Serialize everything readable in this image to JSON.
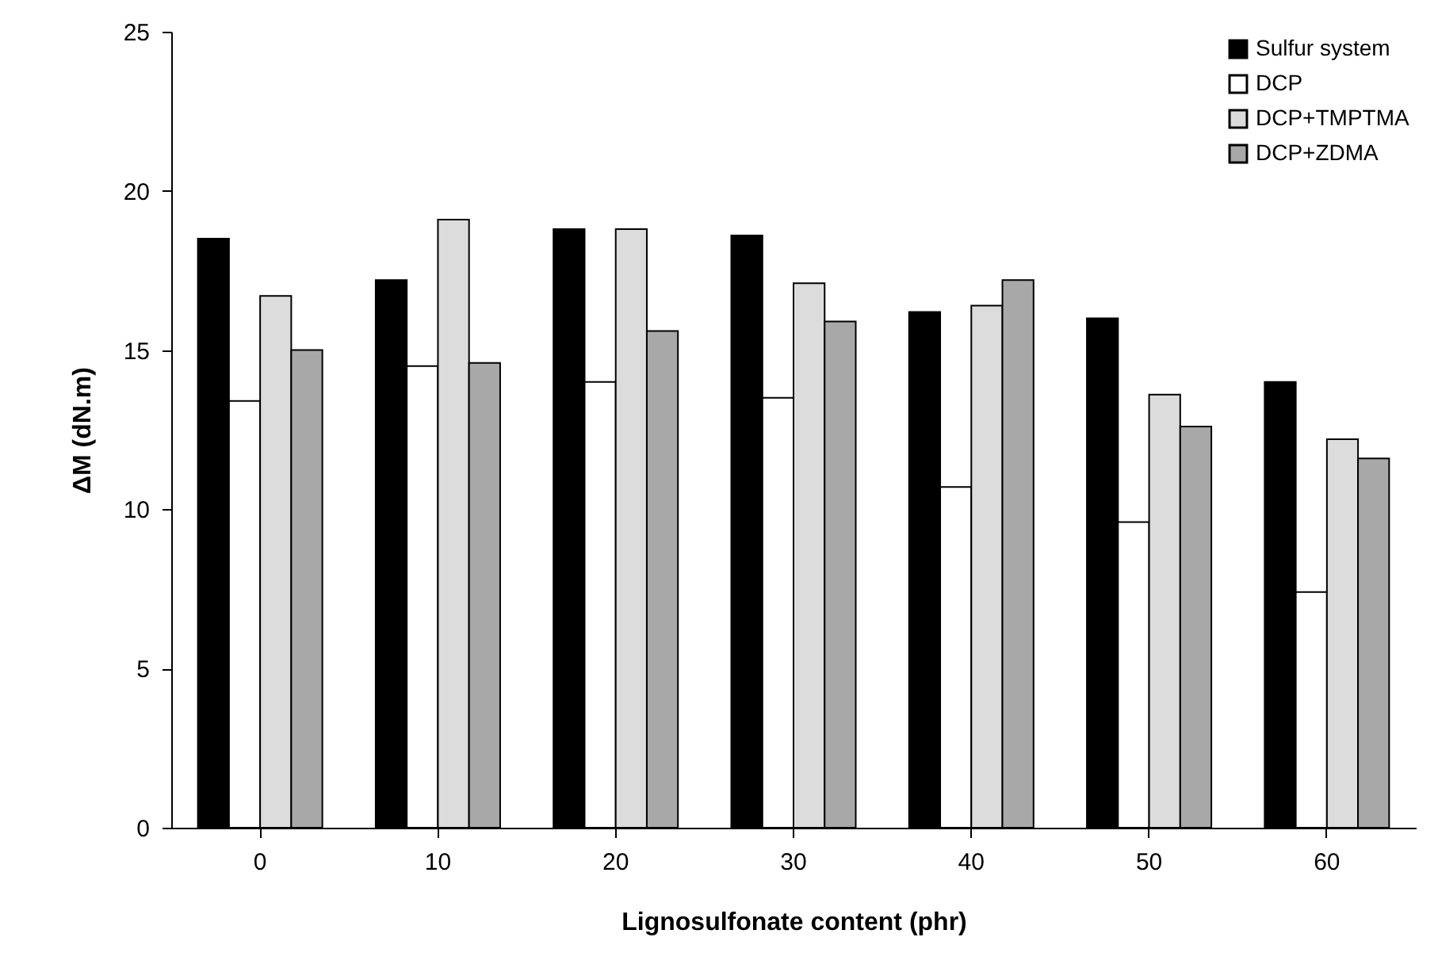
{
  "chart_data": {
    "type": "bar",
    "xlabel": "Lignosulfonate content (phr)",
    "ylabel": "ΔM (dN.m)",
    "categories": [
      "0",
      "10",
      "20",
      "30",
      "40",
      "50",
      "60"
    ],
    "series": [
      {
        "name": "Sulfur system",
        "color": "#000000",
        "values": [
          18.5,
          17.2,
          18.8,
          18.6,
          16.2,
          16.0,
          14.0
        ]
      },
      {
        "name": "DCP",
        "color": "#ffffff",
        "values": [
          13.4,
          14.5,
          14.0,
          13.5,
          10.7,
          9.6,
          7.4
        ]
      },
      {
        "name": "DCP+TMPTMA",
        "color": "#dcdcdc",
        "values": [
          16.7,
          19.1,
          18.8,
          17.1,
          16.4,
          13.6,
          12.2
        ]
      },
      {
        "name": "DCP+ZDMA",
        "color": "#a8a8a8",
        "values": [
          15.0,
          14.6,
          15.6,
          15.9,
          17.2,
          12.6,
          11.6
        ]
      }
    ],
    "ylim": [
      0,
      25
    ],
    "yticks": [
      0,
      5,
      10,
      15,
      20,
      25
    ],
    "grid": false,
    "legend": "top right"
  }
}
